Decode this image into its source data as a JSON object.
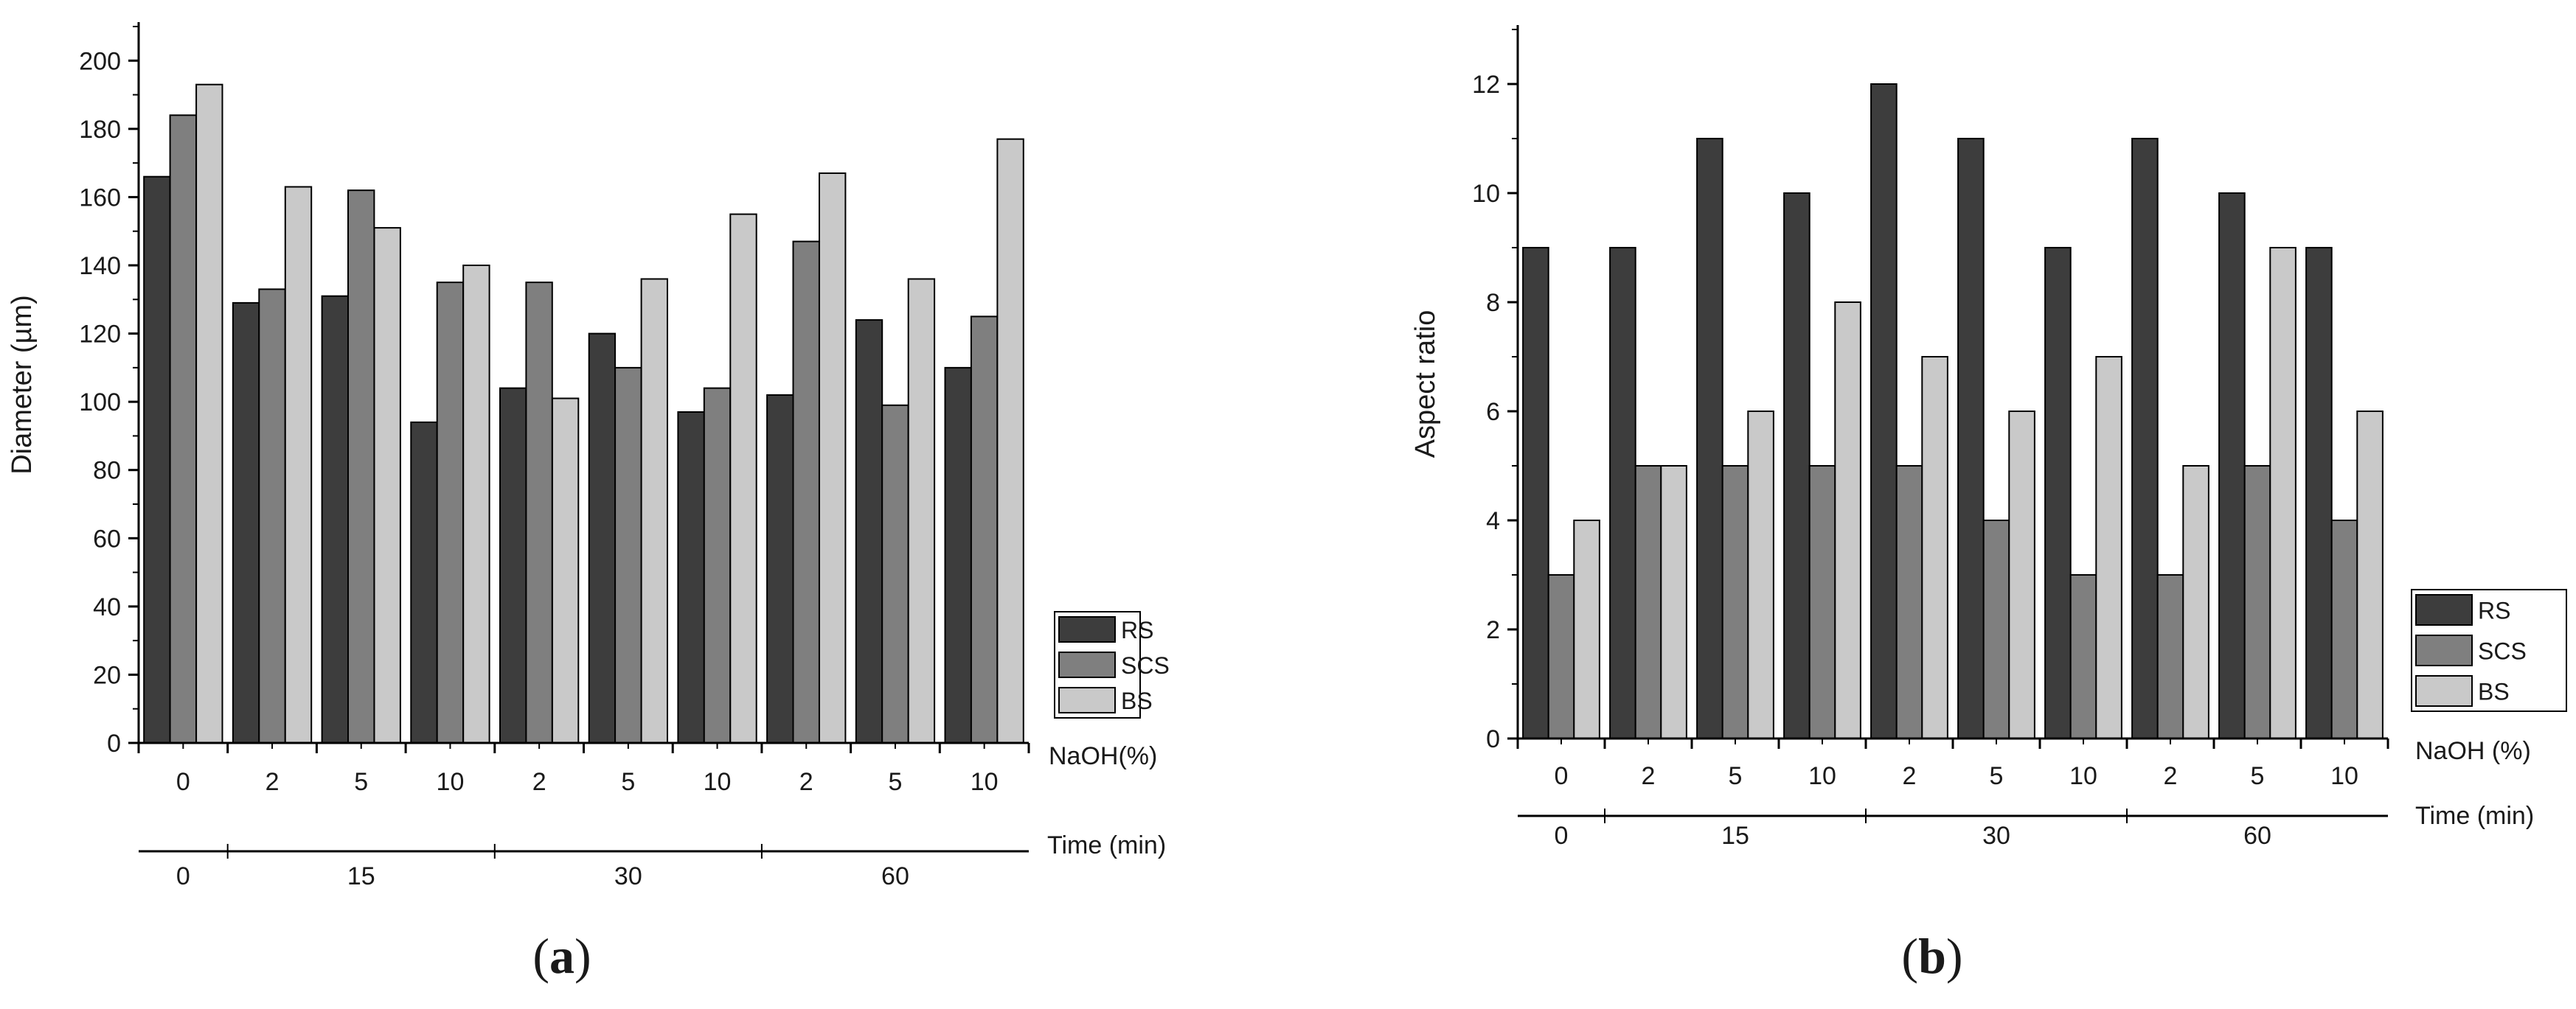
{
  "chart_data": [
    {
      "type": "bar",
      "panel": "a",
      "ylabel": "Diameter (µm)",
      "xlabel_naoh": "NaOH(%)",
      "xlabel_time": "Time (min)",
      "ylim": [
        0,
        210
      ],
      "yticks": [
        0,
        20,
        40,
        60,
        80,
        100,
        120,
        140,
        160,
        180,
        200
      ],
      "categories": [
        "0",
        "2",
        "5",
        "10",
        "2",
        "5",
        "10",
        "2",
        "5",
        "10"
      ],
      "time_groups": [
        {
          "label": "0",
          "start": 0,
          "end": 0
        },
        {
          "label": "15",
          "start": 1,
          "end": 3
        },
        {
          "label": "30",
          "start": 4,
          "end": 6
        },
        {
          "label": "60",
          "start": 7,
          "end": 9
        }
      ],
      "series": [
        {
          "name": "RS",
          "color": "#3d3d3d",
          "values": [
            166,
            129,
            131,
            94,
            104,
            120,
            97,
            102,
            124,
            110
          ]
        },
        {
          "name": "SCS",
          "color": "#7f7f7f",
          "values": [
            184,
            133,
            162,
            135,
            135,
            110,
            104,
            147,
            99,
            125
          ]
        },
        {
          "name": "BS",
          "color": "#c9c9c9",
          "values": [
            193,
            163,
            151,
            140,
            101,
            136,
            155,
            167,
            136,
            177
          ]
        }
      ],
      "legend": "right"
    },
    {
      "type": "bar",
      "panel": "b",
      "ylabel": "Aspect ratio",
      "xlabel_naoh": "NaOH (%)",
      "xlabel_time": "Time (min)",
      "ylim": [
        0,
        13
      ],
      "yticks": [
        0,
        2,
        4,
        6,
        8,
        10,
        12
      ],
      "categories": [
        "0",
        "2",
        "5",
        "10",
        "2",
        "5",
        "10",
        "2",
        "5",
        "10"
      ],
      "time_groups": [
        {
          "label": "0",
          "start": 0,
          "end": 0
        },
        {
          "label": "15",
          "start": 1,
          "end": 3
        },
        {
          "label": "30",
          "start": 4,
          "end": 6
        },
        {
          "label": "60",
          "start": 7,
          "end": 9
        }
      ],
      "series": [
        {
          "name": "RS",
          "color": "#3d3d3d",
          "values": [
            9,
            9,
            11,
            10,
            12,
            11,
            9,
            11,
            10,
            9
          ]
        },
        {
          "name": "SCS",
          "color": "#7f7f7f",
          "values": [
            3,
            5,
            5,
            5,
            5,
            4,
            3,
            3,
            5,
            4
          ]
        },
        {
          "name": "BS",
          "color": "#c9c9c9",
          "values": [
            4,
            5,
            6,
            8,
            7,
            6,
            7,
            5,
            9,
            6
          ]
        }
      ],
      "legend": "right"
    }
  ],
  "panel_labels": {
    "a": {
      "open": "(",
      "letter": "a",
      "close": ")"
    },
    "b": {
      "open": "(",
      "letter": "b",
      "close": ")"
    }
  }
}
